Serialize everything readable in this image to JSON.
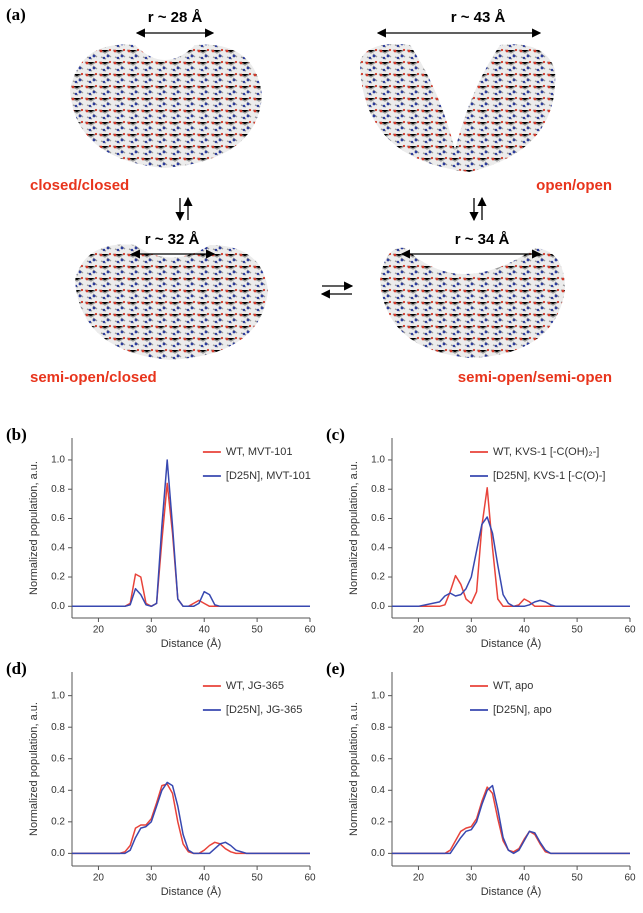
{
  "figure": {
    "label": "(a)",
    "distances": [
      "r ~ 28 Å",
      "r ~ 43 Å",
      "r ~ 32 Å",
      "r ~ 34 Å"
    ],
    "states": [
      "closed/closed",
      "open/open",
      "semi-open/closed",
      "semi-open/semi-open"
    ]
  },
  "chart_data": [
    {
      "type": "line",
      "panel": "(b)",
      "x_label": "Distance (Å)",
      "y_label": "Normalized population, a.u.",
      "legend": "upper right",
      "x": [
        15,
        20,
        24,
        25,
        26,
        27,
        28,
        29,
        30,
        31,
        32,
        33,
        34,
        35,
        36,
        37,
        38,
        39,
        40,
        41,
        42,
        43,
        44,
        45,
        46,
        48,
        50,
        55,
        60
      ],
      "series": [
        {
          "name": "WT, MVT-101",
          "color": "#e8433a",
          "values": [
            0,
            0,
            0,
            0,
            0.02,
            0.22,
            0.2,
            0.02,
            0,
            0.02,
            0.45,
            0.84,
            0.5,
            0.05,
            0,
            0,
            0.02,
            0.04,
            0.02,
            0,
            0,
            0,
            0,
            0,
            0,
            0,
            0,
            0,
            0
          ]
        },
        {
          "name": "[D25N], MVT-101",
          "color": "#3848b0",
          "values": [
            0,
            0,
            0,
            0,
            0.01,
            0.12,
            0.08,
            0.01,
            0,
            0.02,
            0.55,
            1.0,
            0.55,
            0.05,
            0,
            0,
            0,
            0.02,
            0.1,
            0.08,
            0.01,
            0,
            0,
            0,
            0,
            0,
            0,
            0,
            0
          ]
        }
      ],
      "xlim": [
        15,
        60
      ],
      "xticks": [
        20,
        30,
        40,
        50,
        60
      ],
      "ylim": [
        -0.08,
        1.15
      ],
      "yticks": [
        {
          "value": 0,
          "label": "0.0"
        },
        {
          "value": 0.2,
          "label": "0.2"
        },
        {
          "value": 0.4,
          "label": "0.4"
        },
        {
          "value": 0.6,
          "label": "0.6"
        },
        {
          "value": 0.8,
          "label": "0.8"
        },
        {
          "value": 1,
          "label": "1.0"
        }
      ]
    },
    {
      "type": "line",
      "panel": "(c)",
      "x_label": "Distance (Å)",
      "y_label": "Normalized population, a.u.",
      "legend": "upper right",
      "x": [
        15,
        20,
        24,
        25,
        26,
        27,
        28,
        29,
        30,
        31,
        32,
        33,
        34,
        35,
        36,
        37,
        38,
        39,
        40,
        41,
        42,
        43,
        44,
        45,
        46,
        48,
        50,
        55,
        60
      ],
      "series": [
        {
          "name": "WT, KVS-1 [-C(OH)₂-]",
          "color": "#e8433a",
          "values": [
            0,
            0,
            0,
            0.01,
            0.1,
            0.21,
            0.15,
            0.05,
            0.02,
            0.1,
            0.55,
            0.81,
            0.4,
            0.05,
            0,
            0,
            0,
            0.01,
            0.05,
            0.03,
            0,
            0,
            0,
            0,
            0,
            0,
            0,
            0,
            0
          ]
        },
        {
          "name": "[D25N], KVS-1 [-C(O)-]",
          "color": "#3848b0",
          "values": [
            0,
            0,
            0.03,
            0.07,
            0.09,
            0.07,
            0.08,
            0.12,
            0.2,
            0.38,
            0.56,
            0.61,
            0.5,
            0.28,
            0.08,
            0.02,
            0,
            0,
            0,
            0.01,
            0.03,
            0.04,
            0.03,
            0.01,
            0,
            0,
            0,
            0,
            0
          ]
        }
      ],
      "xlim": [
        15,
        60
      ],
      "xticks": [
        20,
        30,
        40,
        50,
        60
      ],
      "ylim": [
        -0.08,
        1.15
      ],
      "yticks": [
        {
          "value": 0,
          "label": "0.0"
        },
        {
          "value": 0.2,
          "label": "0.2"
        },
        {
          "value": 0.4,
          "label": "0.4"
        },
        {
          "value": 0.6,
          "label": "0.6"
        },
        {
          "value": 0.8,
          "label": "0.8"
        },
        {
          "value": 1,
          "label": "1.0"
        }
      ]
    },
    {
      "type": "line",
      "panel": "(d)",
      "x_label": "Distance (Å)",
      "y_label": "Normalized population, a.u.",
      "legend": "upper right",
      "x": [
        15,
        20,
        24,
        25,
        26,
        27,
        28,
        29,
        30,
        31,
        32,
        33,
        34,
        35,
        36,
        37,
        38,
        39,
        40,
        41,
        42,
        43,
        44,
        45,
        46,
        48,
        50,
        55,
        60
      ],
      "series": [
        {
          "name": "WT, JG-365",
          "color": "#e8433a",
          "values": [
            0,
            0,
            0,
            0.01,
            0.05,
            0.16,
            0.18,
            0.18,
            0.22,
            0.32,
            0.43,
            0.44,
            0.38,
            0.2,
            0.06,
            0.01,
            0,
            0,
            0.02,
            0.05,
            0.07,
            0.06,
            0.03,
            0.01,
            0,
            0,
            0,
            0,
            0
          ]
        },
        {
          "name": "[D25N], JG-365",
          "color": "#3848b0",
          "values": [
            0,
            0,
            0,
            0,
            0.02,
            0.1,
            0.16,
            0.17,
            0.2,
            0.3,
            0.4,
            0.45,
            0.43,
            0.3,
            0.12,
            0.02,
            0,
            0,
            0,
            0,
            0.03,
            0.06,
            0.07,
            0.05,
            0.02,
            0,
            0,
            0,
            0
          ]
        }
      ],
      "xlim": [
        15,
        60
      ],
      "xticks": [
        20,
        30,
        40,
        50,
        60
      ],
      "ylim": [
        -0.08,
        1.15
      ],
      "yticks": [
        {
          "value": 0,
          "label": "0.0"
        },
        {
          "value": 0.2,
          "label": "0.2"
        },
        {
          "value": 0.4,
          "label": "0.4"
        },
        {
          "value": 0.6,
          "label": "0.6"
        },
        {
          "value": 0.8,
          "label": "0.8"
        },
        {
          "value": 1,
          "label": "1.0"
        }
      ]
    },
    {
      "type": "line",
      "panel": "(e)",
      "x_label": "Distance (Å)",
      "y_label": "Normalized population, a.u.",
      "legend": "upper right",
      "x": [
        15,
        20,
        24,
        25,
        26,
        27,
        28,
        29,
        30,
        31,
        32,
        33,
        34,
        35,
        36,
        37,
        38,
        39,
        40,
        41,
        42,
        43,
        44,
        45,
        46,
        48,
        50,
        55,
        60
      ],
      "series": [
        {
          "name": "WT, apo",
          "color": "#e8433a",
          "values": [
            0,
            0,
            0,
            0,
            0.02,
            0.08,
            0.14,
            0.16,
            0.17,
            0.22,
            0.33,
            0.42,
            0.38,
            0.22,
            0.08,
            0.02,
            0.01,
            0.03,
            0.09,
            0.14,
            0.12,
            0.06,
            0.01,
            0,
            0,
            0,
            0,
            0,
            0
          ]
        },
        {
          "name": "[D25N], apo",
          "color": "#3848b0",
          "values": [
            0,
            0,
            0,
            0,
            0,
            0.05,
            0.1,
            0.14,
            0.15,
            0.2,
            0.31,
            0.4,
            0.43,
            0.28,
            0.1,
            0.02,
            0,
            0.02,
            0.08,
            0.14,
            0.13,
            0.07,
            0.02,
            0,
            0,
            0,
            0,
            0,
            0
          ]
        }
      ],
      "xlim": [
        15,
        60
      ],
      "xticks": [
        20,
        30,
        40,
        50,
        60
      ],
      "ylim": [
        -0.08,
        1.15
      ],
      "yticks": [
        {
          "value": 0,
          "label": "0.0"
        },
        {
          "value": 0.2,
          "label": "0.2"
        },
        {
          "value": 0.4,
          "label": "0.4"
        },
        {
          "value": 0.6,
          "label": "0.6"
        },
        {
          "value": 0.8,
          "label": "0.8"
        },
        {
          "value": 1,
          "label": "1.0"
        }
      ]
    }
  ]
}
